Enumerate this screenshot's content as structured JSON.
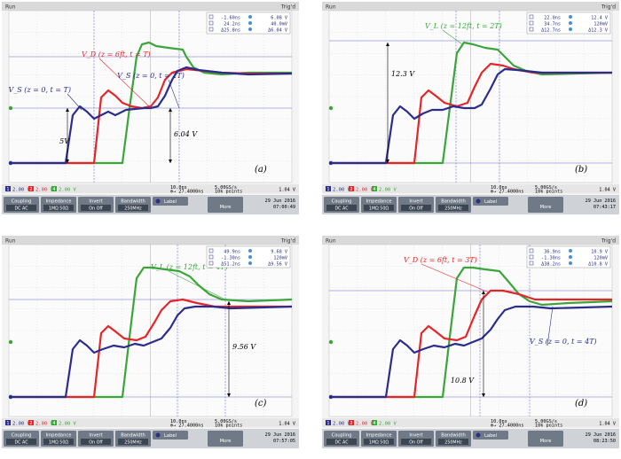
{
  "chart_data": [
    {
      "type": "line",
      "panel_label": "(a)",
      "status": {
        "run": "Run",
        "trig": "Trig'd"
      },
      "cursor_readout": [
        [
          "-1.60ns",
          "6.08 V"
        ],
        [
          "24.2ns",
          "40.0mV"
        ],
        [
          "Δ25.8ns",
          "Δ6.04 V"
        ]
      ],
      "annotations": [
        {
          "text": "V_D (z = 6ft, t = T)",
          "color": "#e4262b"
        },
        {
          "text": "V_S (z = 0, t = 2T)",
          "color": "#2c2c8c"
        },
        {
          "text": "V_S (z = 0, t = T)",
          "color": "#2c2c8c"
        },
        {
          "text": "5V",
          "color": "#000000"
        },
        {
          "text": "6.04 V",
          "color": "#000000"
        }
      ],
      "channels": [
        {
          "label": "1",
          "scale": "2.00 V"
        },
        {
          "label": "2",
          "scale": "2.00 V"
        },
        {
          "label": "4",
          "scale": "2.00 V"
        }
      ],
      "timebase": {
        "div": "10.0ns",
        "offset": "27.4000ns"
      },
      "acquisition": {
        "rate": "5.00GS/s",
        "points": "10k points"
      },
      "trigger": {
        "level": "1.04 V"
      },
      "date": "29 Jun 2016",
      "time": "07:00:49",
      "menu": {
        "coupling": "Coupling",
        "coupling_opts": "DC  AC",
        "impedance": "Impedance",
        "imp_opts": "1MΩ  50Ω",
        "invert": "Invert",
        "inv_opts": "On  Off",
        "bandwidth": "Bandwidth",
        "bw_val": "250MHz",
        "label": "Label",
        "more": "More"
      }
    },
    {
      "type": "line",
      "panel_label": "(b)",
      "status": {
        "run": "Run",
        "trig": "Trig'd"
      },
      "cursor_readout": [
        [
          "22.0ns",
          "12.4 V"
        ],
        [
          "34.7ns",
          "120mV"
        ],
        [
          "Δ12.7ns",
          "Δ12.3 V"
        ]
      ],
      "annotations": [
        {
          "text": "V_L (z = 12ft, t = 2T)",
          "color": "#3aa63a"
        },
        {
          "text": "12.3 V",
          "color": "#000000"
        }
      ],
      "channels": [
        {
          "label": "1",
          "scale": "2.00 V"
        },
        {
          "label": "2",
          "scale": "2.00 V"
        },
        {
          "label": "4",
          "scale": "2.00 V"
        }
      ],
      "timebase": {
        "div": "10.0ns",
        "offset": "27.4000ns"
      },
      "acquisition": {
        "rate": "5.00GS/s",
        "points": "10k points"
      },
      "trigger": {
        "level": "1.04 V"
      },
      "date": "29 Jun 2016",
      "time": "07:43:17",
      "menu": {
        "coupling": "Coupling",
        "coupling_opts": "DC  AC",
        "impedance": "Impedance",
        "imp_opts": "1MΩ  50Ω",
        "invert": "Invert",
        "inv_opts": "On  Off",
        "bandwidth": "Bandwidth",
        "bw_val": "250MHz",
        "label": "Label",
        "more": "More"
      }
    },
    {
      "type": "line",
      "panel_label": "(c)",
      "status": {
        "run": "Run",
        "trig": "Trig'd"
      },
      "cursor_readout": [
        [
          "49.9ns",
          "9.68 V"
        ],
        [
          "-1.30ns",
          "120mV"
        ],
        [
          "Δ51.2ns",
          "Δ9.56 V"
        ]
      ],
      "annotations": [
        {
          "text": "V_L (z = 12ft, t = 4T)",
          "color": "#3aa63a"
        },
        {
          "text": "9.56 V",
          "color": "#000000"
        }
      ],
      "channels": [
        {
          "label": "1",
          "scale": "2.00 V"
        },
        {
          "label": "2",
          "scale": "2.00 V"
        },
        {
          "label": "4",
          "scale": "2.00 V"
        }
      ],
      "timebase": {
        "div": "10.0ns",
        "offset": "27.4000ns"
      },
      "acquisition": {
        "rate": "5.00GS/s",
        "points": "10k points"
      },
      "trigger": {
        "level": "1.04 V"
      },
      "date": "29 Jun 2016",
      "time": "07:57:05",
      "menu": {
        "coupling": "Coupling",
        "coupling_opts": "DC  AC",
        "impedance": "Impedance",
        "imp_opts": "1MΩ  50Ω",
        "invert": "Invert",
        "inv_opts": "On  Off",
        "bandwidth": "Bandwidth",
        "bw_val": "250MHz",
        "label": "Label",
        "more": "More"
      }
    },
    {
      "type": "line",
      "panel_label": "(d)",
      "status": {
        "run": "Run",
        "trig": "Trig'd"
      },
      "cursor_readout": [
        [
          "36.9ns",
          "10.9 V"
        ],
        [
          "-1.30ns",
          "120mV"
        ],
        [
          "Δ38.2ns",
          "Δ10.8 V"
        ]
      ],
      "annotations": [
        {
          "text": "V_D (z = 6ft, t = 3T)",
          "color": "#e4262b"
        },
        {
          "text": "V_S (z = 0, t = 4T)",
          "color": "#2c2c8c"
        },
        {
          "text": "10.8 V",
          "color": "#000000"
        }
      ],
      "channels": [
        {
          "label": "1",
          "scale": "2.00 V"
        },
        {
          "label": "2",
          "scale": "2.00 V"
        },
        {
          "label": "4",
          "scale": "2.00 V"
        }
      ],
      "timebase": {
        "div": "10.0ns",
        "offset": "27.4000ns"
      },
      "acquisition": {
        "rate": "5.00GS/s",
        "points": "10k points"
      },
      "trigger": {
        "level": "1.04 V"
      },
      "date": "29 Jun 2016",
      "time": "08:23:50",
      "menu": {
        "coupling": "Coupling",
        "coupling_opts": "DC  AC",
        "impedance": "Impedance",
        "imp_opts": "1MΩ  50Ω",
        "invert": "Invert",
        "inv_opts": "On  Off",
        "bandwidth": "Bandwidth",
        "bw_val": "250MHz",
        "label": "Label",
        "more": "More"
      }
    }
  ],
  "colors": {
    "ch1": "#2c2c8c",
    "ch2": "#e4262b",
    "ch4": "#3aa63a"
  }
}
